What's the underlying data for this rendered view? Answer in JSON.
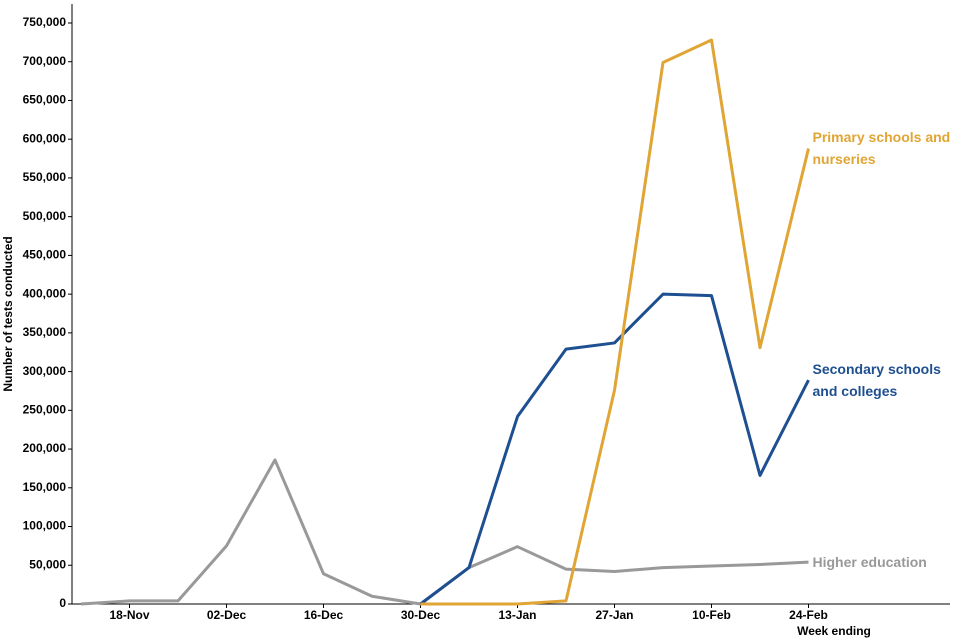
{
  "chart_data": {
    "type": "line",
    "x_label": "Week ending",
    "y_label": "Number of tests conducted",
    "categories": [
      null,
      "18-Nov",
      null,
      "02-Dec",
      null,
      "16-Dec",
      null,
      "30-Dec",
      null,
      "13-Jan",
      null,
      "27-Jan",
      null,
      "10-Feb",
      null,
      "24-Feb"
    ],
    "series": [
      {
        "name": "Higher education",
        "color": "#999999",
        "values": [
          0,
          4000,
          4000,
          75000,
          186000,
          39000,
          10000,
          0,
          47000,
          74000,
          45000,
          42000,
          47000,
          49000,
          51000,
          54000
        ]
      },
      {
        "name": "Secondary schools and colleges",
        "color": "#1d4f91",
        "values": [
          null,
          null,
          null,
          null,
          null,
          null,
          null,
          0,
          47000,
          242000,
          329000,
          337000,
          400000,
          398000,
          166000,
          289000
        ]
      },
      {
        "name": "Primary schools and nurseries",
        "color": "#e0a534",
        "values": [
          null,
          null,
          null,
          null,
          null,
          null,
          null,
          0,
          0,
          0,
          4000,
          276000,
          699000,
          728000,
          331000,
          588000
        ]
      }
    ],
    "ylim": [
      0,
      750000
    ],
    "yticks": [
      0,
      {
        "value": 50000,
        "label": "50,000"
      },
      {
        "value": 100000,
        "label": "100,000"
      },
      {
        "value": 150000,
        "label": "150,000"
      },
      {
        "value": 200000,
        "label": "200,000"
      },
      {
        "value": 250000,
        "label": "250,000"
      },
      {
        "value": 300000,
        "label": "300,000"
      },
      {
        "value": 350000,
        "label": "350,000"
      },
      {
        "value": 400000,
        "label": "400,000"
      },
      {
        "value": 450000,
        "label": "450,000"
      },
      {
        "value": 500000,
        "label": "500,000"
      },
      {
        "value": 550000,
        "label": "550,000"
      },
      {
        "value": 600000,
        "label": "600,000"
      },
      {
        "value": 650000,
        "label": "650,000"
      },
      {
        "value": 700000,
        "label": "700,000"
      },
      {
        "value": 750000,
        "label": "750,000"
      }
    ],
    "grid": false
  }
}
